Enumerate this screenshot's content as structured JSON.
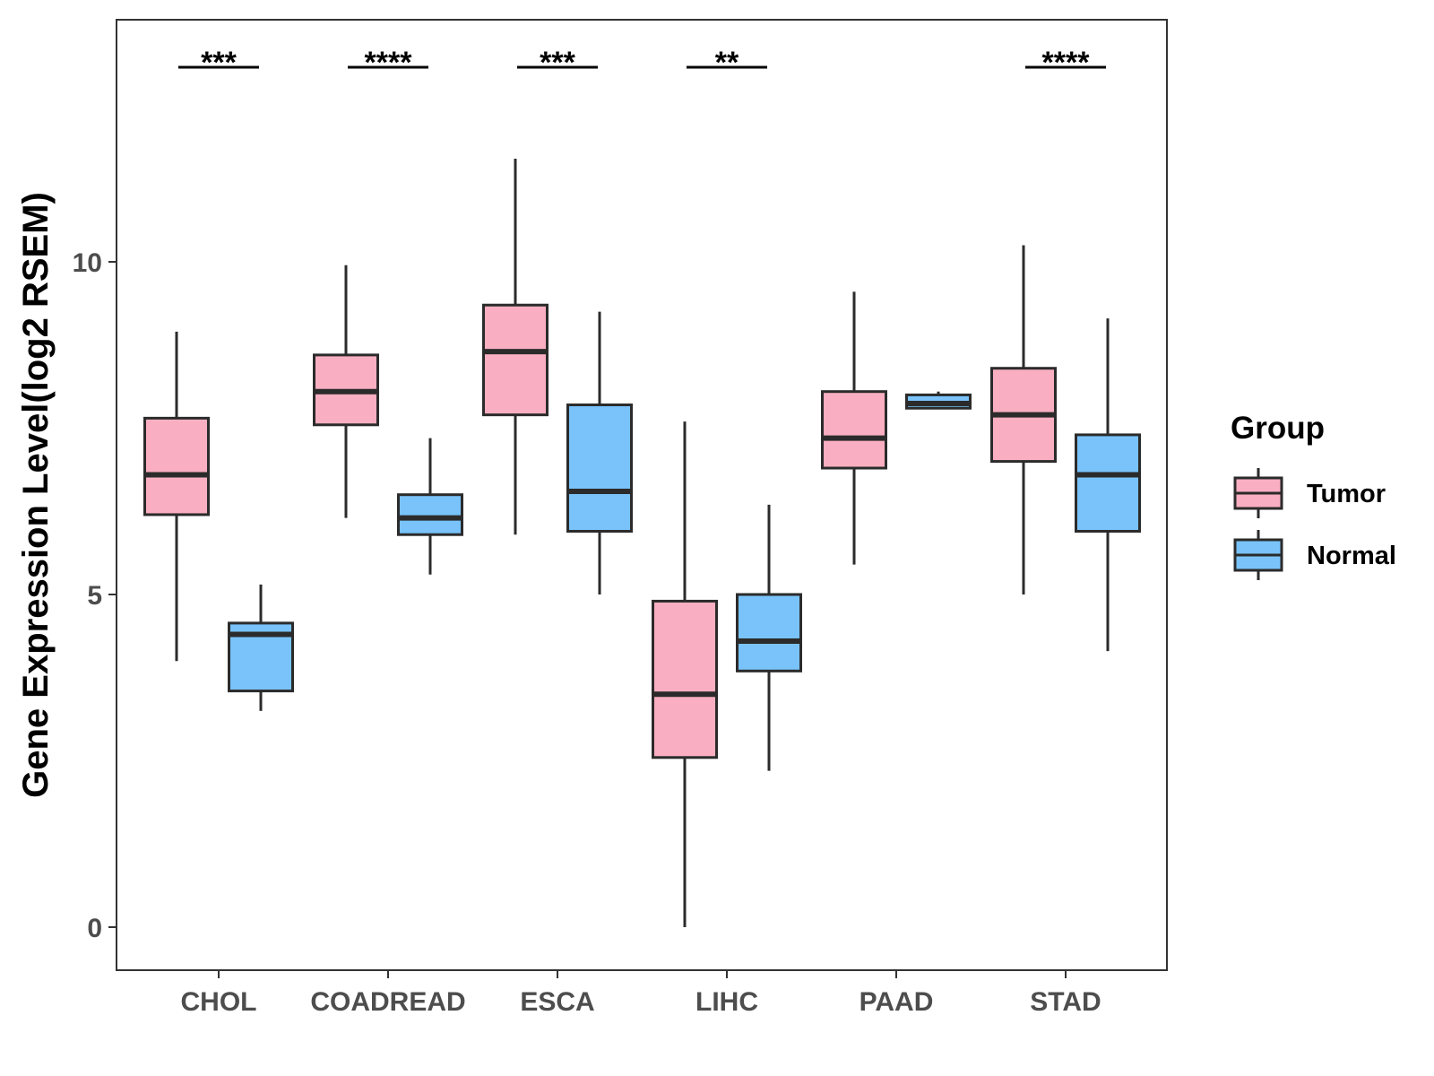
{
  "chart_data": {
    "type": "boxplot",
    "title": "",
    "xlabel": "",
    "ylabel": "Gene Expression Level(log2 RSEM)",
    "ylim": [
      -0.65,
      13.6
    ],
    "yticks": [
      0,
      5,
      10
    ],
    "grid": false,
    "legend_position": "right",
    "legend_title": "Group",
    "categories": [
      "CHOL",
      "COADREAD",
      "ESCA",
      "LIHC",
      "PAAD",
      "STAD"
    ],
    "series": [
      {
        "name": "Tumor",
        "color": "#F9AFC1",
        "boxes": [
          {
            "min": 4.0,
            "q1": 6.2,
            "median": 6.8,
            "q3": 7.65,
            "max": 8.95
          },
          {
            "min": 6.15,
            "q1": 7.55,
            "median": 8.05,
            "q3": 8.6,
            "max": 9.95
          },
          {
            "min": 5.9,
            "q1": 7.7,
            "median": 8.65,
            "q3": 9.35,
            "max": 11.55
          },
          {
            "min": 0.0,
            "q1": 2.55,
            "median": 3.5,
            "q3": 4.9,
            "max": 7.6
          },
          {
            "min": 5.45,
            "q1": 6.9,
            "median": 7.35,
            "q3": 8.05,
            "max": 9.55
          },
          {
            "min": 5.0,
            "q1": 7.0,
            "median": 7.7,
            "q3": 8.4,
            "max": 10.25
          }
        ]
      },
      {
        "name": "Normal",
        "color": "#79C3FA",
        "boxes": [
          {
            "min": 3.25,
            "q1": 3.55,
            "median": 4.4,
            "q3": 4.57,
            "max": 5.15
          },
          {
            "min": 5.3,
            "q1": 5.9,
            "median": 6.15,
            "q3": 6.5,
            "max": 7.35
          },
          {
            "min": 5.0,
            "q1": 5.95,
            "median": 6.55,
            "q3": 7.85,
            "max": 9.25
          },
          {
            "min": 2.35,
            "q1": 3.85,
            "median": 4.3,
            "q3": 5.0,
            "max": 6.35
          },
          {
            "min": 7.8,
            "q1": 7.8,
            "median": 7.87,
            "q3": 8.0,
            "max": 8.05
          },
          {
            "min": 4.15,
            "q1": 5.95,
            "median": 6.8,
            "q3": 7.4,
            "max": 9.15
          }
        ]
      }
    ],
    "significance": [
      {
        "category": "CHOL",
        "label": "***"
      },
      {
        "category": "COADREAD",
        "label": "****"
      },
      {
        "category": "ESCA",
        "label": "***"
      },
      {
        "category": "LIHC",
        "label": "**"
      },
      {
        "category": "STAD",
        "label": "****"
      }
    ]
  }
}
